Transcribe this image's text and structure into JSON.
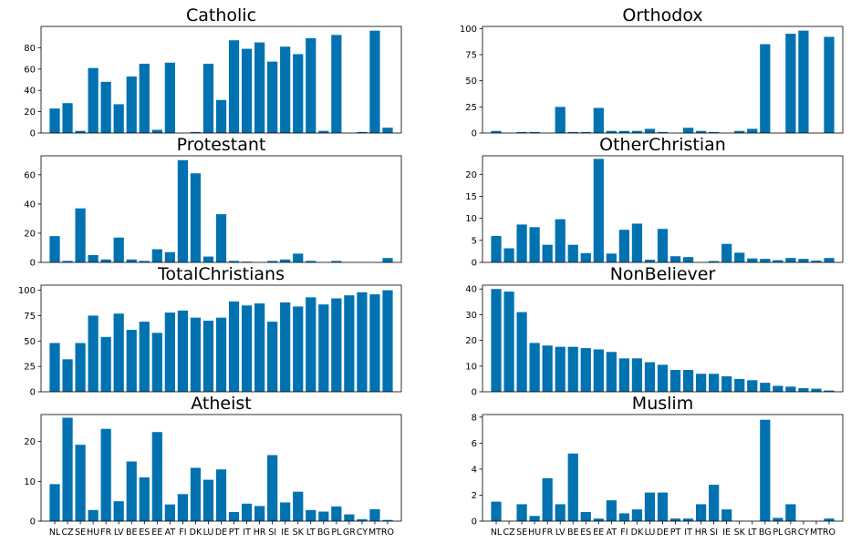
{
  "colors": {
    "bar": "#0072b2",
    "axis": "#000000",
    "text": "#000000"
  },
  "countries": [
    "NL",
    "CZ",
    "SE",
    "HU",
    "FR",
    "LV",
    "BE",
    "ES",
    "EE",
    "AT",
    "FI",
    "DK",
    "LU",
    "DE",
    "PT",
    "IT",
    "HR",
    "SI",
    "IE",
    "SK",
    "LT",
    "BG",
    "PL",
    "GR",
    "CY",
    "MT",
    "RO"
  ],
  "chart_data": [
    {
      "type": "bar",
      "title": "Catholic",
      "categories": [
        "NL",
        "CZ",
        "SE",
        "HU",
        "FR",
        "LV",
        "BE",
        "ES",
        "EE",
        "AT",
        "FI",
        "DK",
        "LU",
        "DE",
        "PT",
        "IT",
        "HR",
        "SI",
        "IE",
        "SK",
        "LT",
        "BG",
        "PL",
        "GR",
        "CY",
        "MT",
        "RO"
      ],
      "values": [
        23,
        28,
        2,
        61,
        48,
        27,
        53,
        65,
        3,
        66,
        0,
        1,
        65,
        31,
        87,
        79,
        85,
        67,
        81,
        74,
        89,
        2,
        92,
        0,
        1,
        96,
        5
      ],
      "yticks": [
        0,
        20,
        40,
        60,
        80
      ],
      "ylim": [
        0,
        100
      ],
      "show_xticks": false
    },
    {
      "type": "bar",
      "title": "Orthodox",
      "categories": [
        "NL",
        "CZ",
        "SE",
        "HU",
        "FR",
        "LV",
        "BE",
        "ES",
        "EE",
        "AT",
        "FI",
        "DK",
        "LU",
        "DE",
        "PT",
        "IT",
        "HR",
        "SI",
        "IE",
        "SK",
        "LT",
        "BG",
        "PL",
        "GR",
        "CY",
        "MT",
        "RO"
      ],
      "values": [
        2,
        0,
        1,
        1,
        0,
        25,
        1,
        1,
        24,
        2,
        2,
        2,
        4,
        1,
        0,
        5,
        2,
        1,
        0,
        2,
        4,
        85,
        0,
        95,
        98,
        0,
        92
      ],
      "yticks": [
        0,
        25,
        50,
        75,
        100
      ],
      "ylim": [
        0,
        102
      ],
      "show_xticks": false
    },
    {
      "type": "bar",
      "title": "Protestant",
      "categories": [
        "NL",
        "CZ",
        "SE",
        "HU",
        "FR",
        "LV",
        "BE",
        "ES",
        "EE",
        "AT",
        "FI",
        "DK",
        "LU",
        "DE",
        "PT",
        "IT",
        "HR",
        "SI",
        "IE",
        "SK",
        "LT",
        "BG",
        "PL",
        "GR",
        "CY",
        "MT",
        "RO"
      ],
      "values": [
        18,
        1,
        37,
        5,
        2,
        17,
        2,
        1,
        9,
        7,
        70,
        61,
        4,
        33,
        1,
        0.5,
        0,
        1,
        2,
        6,
        1,
        0,
        1,
        0,
        0,
        0,
        3
      ],
      "yticks": [
        0,
        20,
        40,
        60
      ],
      "ylim": [
        0,
        73
      ],
      "show_xticks": false
    },
    {
      "type": "bar",
      "title": "OtherChristian",
      "categories": [
        "NL",
        "CZ",
        "SE",
        "HU",
        "FR",
        "LV",
        "BE",
        "ES",
        "EE",
        "AT",
        "FI",
        "DK",
        "LU",
        "DE",
        "PT",
        "IT",
        "HR",
        "SI",
        "IE",
        "SK",
        "LT",
        "BG",
        "PL",
        "GR",
        "CY",
        "MT",
        "RO"
      ],
      "values": [
        6,
        3.2,
        8.6,
        8,
        4,
        9.8,
        4,
        2.1,
        23.5,
        2,
        7.4,
        8.8,
        0.6,
        7.6,
        1.4,
        1.2,
        0,
        0.3,
        4.2,
        2.2,
        0.9,
        0.8,
        0.5,
        1,
        0.8,
        0.4,
        1
      ],
      "yticks": [
        0,
        5,
        10,
        15,
        20
      ],
      "ylim": [
        0,
        24.2
      ],
      "show_xticks": false
    },
    {
      "type": "bar",
      "title": "TotalChristians",
      "categories": [
        "NL",
        "CZ",
        "SE",
        "HU",
        "FR",
        "LV",
        "BE",
        "ES",
        "EE",
        "AT",
        "FI",
        "DK",
        "LU",
        "DE",
        "PT",
        "IT",
        "HR",
        "SI",
        "IE",
        "SK",
        "LT",
        "BG",
        "PL",
        "GR",
        "CY",
        "MT",
        "RO"
      ],
      "values": [
        48,
        32,
        48,
        75,
        54,
        77,
        61,
        69,
        58,
        78,
        80,
        73,
        70,
        73,
        89,
        85,
        87,
        69,
        88,
        84,
        93,
        86,
        92,
        95,
        98,
        96,
        100
      ],
      "yticks": [
        0,
        25,
        50,
        75,
        100
      ],
      "ylim": [
        0,
        105
      ],
      "show_xticks": false
    },
    {
      "type": "bar",
      "title": "NonBeliever",
      "categories": [
        "NL",
        "CZ",
        "SE",
        "HU",
        "FR",
        "LV",
        "BE",
        "ES",
        "EE",
        "AT",
        "FI",
        "DK",
        "LU",
        "DE",
        "PT",
        "IT",
        "HR",
        "SI",
        "IE",
        "SK",
        "LT",
        "BG",
        "PL",
        "GR",
        "CY",
        "MT",
        "RO"
      ],
      "values": [
        40,
        39,
        31,
        19,
        18,
        17.5,
        17.5,
        17,
        16.5,
        15.5,
        13,
        13,
        11.5,
        10.5,
        8.5,
        8.5,
        7,
        7,
        6,
        5,
        4.5,
        3.5,
        2.3,
        2,
        1.4,
        1.2,
        0.5
      ],
      "yticks": [
        0,
        10,
        20,
        30,
        40
      ],
      "ylim": [
        0,
        41.5
      ],
      "show_xticks": false
    },
    {
      "type": "bar",
      "title": "Atheist",
      "categories": [
        "NL",
        "CZ",
        "SE",
        "HU",
        "FR",
        "LV",
        "BE",
        "ES",
        "EE",
        "AT",
        "FI",
        "DK",
        "LU",
        "DE",
        "PT",
        "IT",
        "HR",
        "SI",
        "IE",
        "SK",
        "LT",
        "BG",
        "PL",
        "GR",
        "CY",
        "MT",
        "RO"
      ],
      "values": [
        9.3,
        26,
        19.2,
        2.8,
        23.2,
        5,
        15,
        11,
        22.4,
        4.2,
        6.8,
        13.4,
        10.4,
        13,
        2.3,
        4.4,
        3.8,
        16.6,
        4.7,
        7.4,
        2.8,
        2.4,
        3.7,
        1.7,
        0.5,
        3,
        0.3
      ],
      "yticks": [
        0,
        10,
        20
      ],
      "ylim": [
        0,
        26.8
      ],
      "show_xticks": true
    },
    {
      "type": "bar",
      "title": "Muslim",
      "categories": [
        "NL",
        "CZ",
        "SE",
        "HU",
        "FR",
        "LV",
        "BE",
        "ES",
        "EE",
        "AT",
        "FI",
        "DK",
        "LU",
        "DE",
        "PT",
        "IT",
        "HR",
        "SI",
        "IE",
        "SK",
        "LT",
        "BG",
        "PL",
        "GR",
        "CY",
        "MT",
        "RO"
      ],
      "values": [
        1.5,
        0,
        1.3,
        0.4,
        3.3,
        1.3,
        5.2,
        0.7,
        0.2,
        1.6,
        0.6,
        0.9,
        2.2,
        2.2,
        0.2,
        0.2,
        1.3,
        2.8,
        0.9,
        0,
        0,
        7.8,
        0.25,
        1.3,
        0,
        0,
        0.2
      ],
      "yticks": [
        0,
        2,
        4,
        6,
        8
      ],
      "ylim": [
        0,
        8.2
      ],
      "show_xticks": true
    }
  ]
}
